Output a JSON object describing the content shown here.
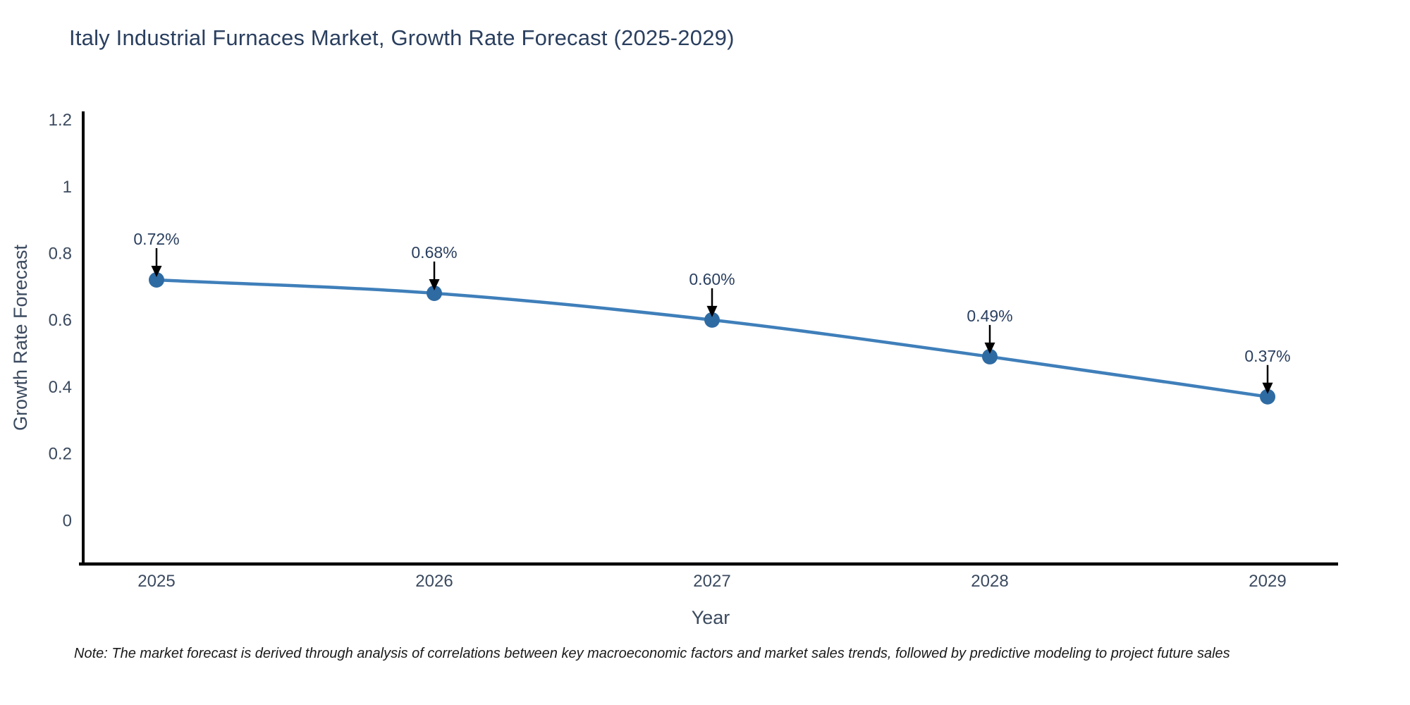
{
  "title": "Italy Industrial Furnaces Market, Growth Rate Forecast (2025-2029)",
  "note": "Note: The market forecast is derived through analysis of correlations between key macroeconomic factors and market sales trends, followed by predictive modeling to project future sales",
  "chart_data": {
    "type": "line",
    "title": "Italy Industrial Furnaces Market, Growth Rate Forecast (2025-2029)",
    "x": [
      "2025",
      "2026",
      "2027",
      "2028",
      "2029"
    ],
    "series": [
      {
        "name": "Growth Rate Forecast",
        "values": [
          0.72,
          0.68,
          0.6,
          0.49,
          0.37
        ],
        "point_labels": [
          "0.72%",
          "0.68%",
          "0.60%",
          "0.49%",
          "0.37%"
        ]
      }
    ],
    "xlabel": "Year",
    "ylabel": "Growth Rate Forecast",
    "yticks": [
      0,
      0.2,
      0.4,
      0.6,
      0.8,
      1,
      1.2
    ],
    "ytick_labels": [
      "0",
      "0.2",
      "0.4",
      "0.6",
      "0.8",
      "1",
      "1.2"
    ],
    "ylim": [
      -0.13,
      1.22
    ],
    "grid": false,
    "legend_position": "none",
    "annotations": "black down-arrows from each point label to its marker",
    "colors": {
      "line": "#3f7fba",
      "marker": "#2f6ba3",
      "arrow": "#000000",
      "axis": "#000000",
      "tick_text": "#3b4a5f",
      "title_text": "#2a3f5f",
      "note_text": "#1a1a1a",
      "background": "#ffffff"
    }
  }
}
